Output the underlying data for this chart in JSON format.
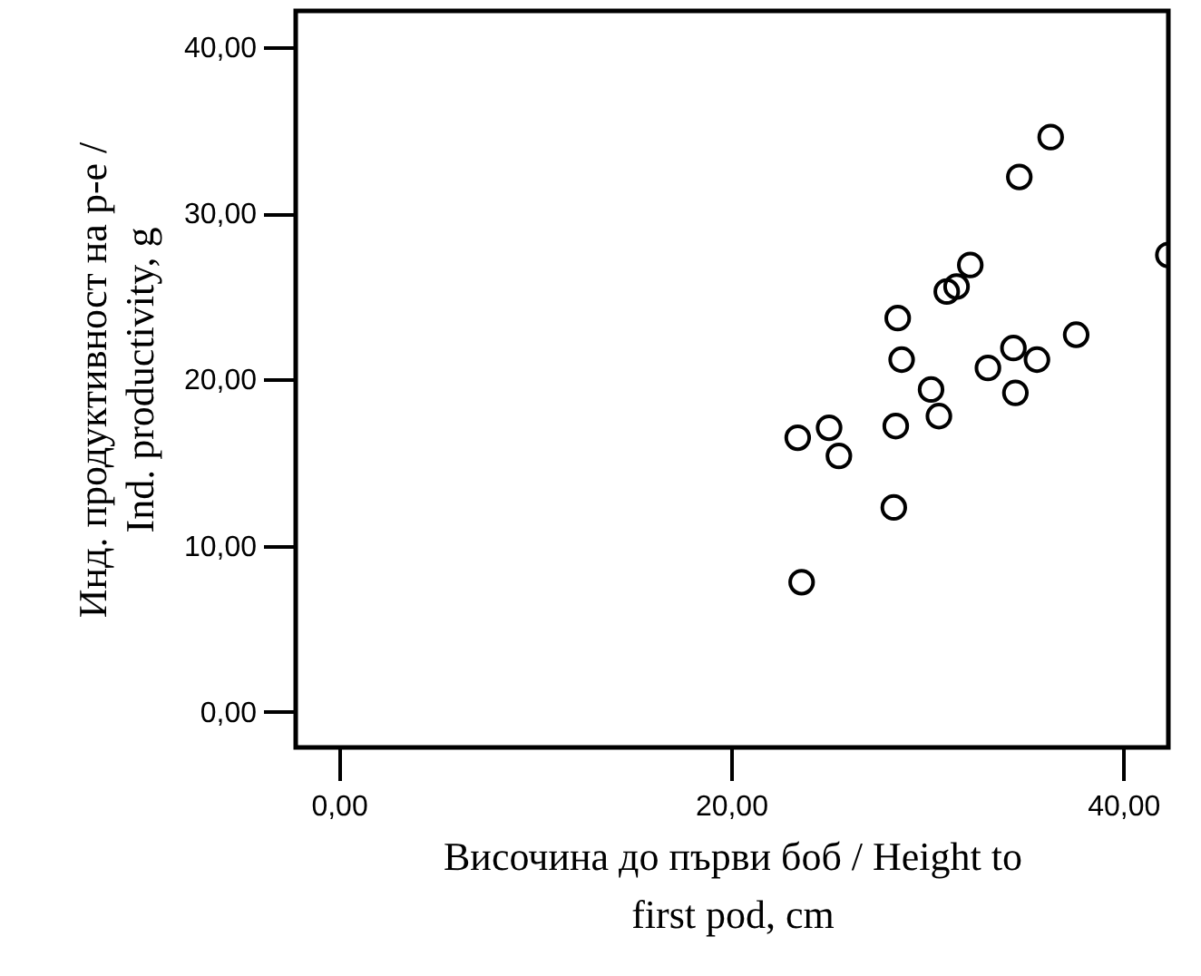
{
  "chart_data": {
    "type": "scatter",
    "xlabel": "Височина до първи боб / Height to first pod, cm",
    "ylabel": "Инд. продуктивност на р-е / Ind. productivity, g",
    "x": [
      36.3,
      34.7,
      42.3,
      32.2,
      31.5,
      31.0,
      28.5,
      28.7,
      37.6,
      34.4,
      35.6,
      33.1,
      30.2,
      34.5,
      30.6,
      28.4,
      25.0,
      23.4,
      25.5,
      28.3,
      23.6
    ],
    "values": [
      34.6,
      32.2,
      27.5,
      26.9,
      25.6,
      25.3,
      23.7,
      21.2,
      22.7,
      21.9,
      21.2,
      20.7,
      19.4,
      19.2,
      17.8,
      17.2,
      17.1,
      16.5,
      15.4,
      12.3,
      7.8
    ],
    "color": "#000000",
    "marker": "circle",
    "xlim": [
      -2.2,
      42.3
    ],
    "ylim": [
      -2.15,
      42.2
    ],
    "xticks": [
      {
        "value": 0,
        "label": "0,00"
      },
      {
        "value": 20,
        "label": "20,00"
      },
      {
        "value": 40,
        "label": "40,00"
      }
    ],
    "yticks": [
      {
        "value": 0,
        "label": "0,00"
      },
      {
        "value": 10,
        "label": "10,00"
      },
      {
        "value": 20,
        "label": "20,00"
      },
      {
        "value": 30,
        "label": "30,00"
      },
      {
        "value": 40,
        "label": "40,00"
      }
    ],
    "grid": false
  }
}
